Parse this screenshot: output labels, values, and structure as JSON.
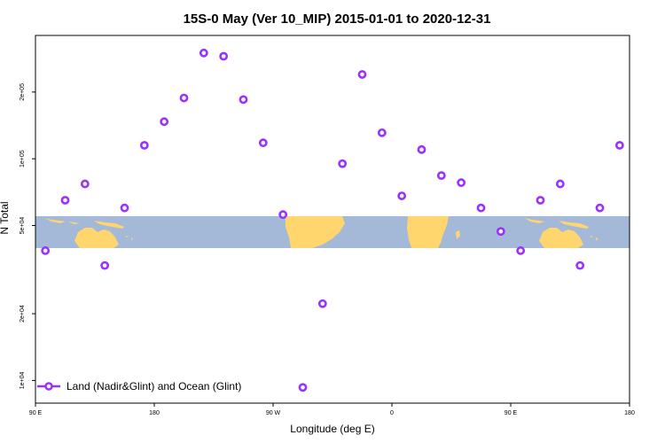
{
  "chart_data": {
    "type": "scatter",
    "title": "15S-0 May (Ver 10_MIP)   2015-01-01 to 2020-12-31",
    "xlabel": "Longitude (deg E)",
    "ylabel": "N Total",
    "x_ticks": [
      {
        "value": 90,
        "label": "90 E"
      },
      {
        "value": 180,
        "label": "180"
      },
      {
        "value": 270,
        "label": "90 W"
      },
      {
        "value": 360,
        "label": "0"
      },
      {
        "value": 450,
        "label": "90 E"
      },
      {
        "value": 540,
        "label": "180"
      }
    ],
    "y_ticks": [
      {
        "value": 10000,
        "label": "1e+04"
      },
      {
        "value": 20000,
        "label": "2e+04"
      },
      {
        "value": 50000,
        "label": "5e+04"
      },
      {
        "value": 100000,
        "label": "1e+05"
      },
      {
        "value": 200000,
        "label": "2e+05"
      }
    ],
    "xlim": [
      90,
      540
    ],
    "ylim": [
      7900,
      360000
    ],
    "y_scale": "log",
    "legend_position": "bottom-left",
    "colors": {
      "series": "#9b30ff",
      "ocean": "#a4b8d8",
      "land": "#ffd66e"
    },
    "series": [
      {
        "name": "Land (Nadir&Glint) and Ocean (Glint)",
        "points": [
          {
            "x": 97.5,
            "y": 38500
          },
          {
            "x": 112.5,
            "y": 65000
          },
          {
            "x": 127.5,
            "y": 77000
          },
          {
            "x": 142.5,
            "y": 33000
          },
          {
            "x": 157.5,
            "y": 60000
          },
          {
            "x": 172.5,
            "y": 115000
          },
          {
            "x": 187.5,
            "y": 147000
          },
          {
            "x": 202.5,
            "y": 188000
          },
          {
            "x": 217.5,
            "y": 300000
          },
          {
            "x": 232.5,
            "y": 290000
          },
          {
            "x": 247.5,
            "y": 185000
          },
          {
            "x": 262.5,
            "y": 118000
          },
          {
            "x": 277.5,
            "y": 56000
          },
          {
            "x": 292.5,
            "y": 9300
          },
          {
            "x": 307.5,
            "y": 22200
          },
          {
            "x": 322.5,
            "y": 95000
          },
          {
            "x": 337.5,
            "y": 240000
          },
          {
            "x": 352.5,
            "y": 131000
          },
          {
            "x": 367.5,
            "y": 68000
          },
          {
            "x": 382.5,
            "y": 110000
          },
          {
            "x": 397.5,
            "y": 84000
          },
          {
            "x": 412.5,
            "y": 78000
          },
          {
            "x": 427.5,
            "y": 60000
          },
          {
            "x": 442.5,
            "y": 47000
          },
          {
            "x": 457.5,
            "y": 38500
          },
          {
            "x": 472.5,
            "y": 65000
          },
          {
            "x": 487.5,
            "y": 77000
          },
          {
            "x": 502.5,
            "y": 33000
          },
          {
            "x": 517.5,
            "y": 60000
          },
          {
            "x": 532.5,
            "y": 115000
          }
        ]
      }
    ]
  }
}
